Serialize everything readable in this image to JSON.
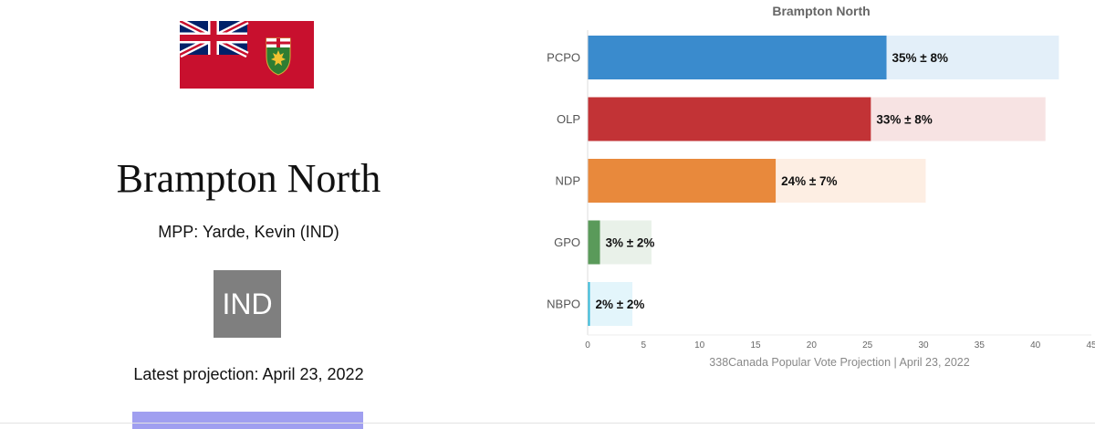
{
  "riding": {
    "name": "Brampton North",
    "mpp_line": "MPP: Yarde, Kevin (IND)",
    "party_badge": "IND",
    "party_badge_color": "#7f7f7f",
    "latest_projection": "Latest projection: April 23, 2022"
  },
  "flag": {
    "field_color": "#c8102e",
    "union_jack_blue": "#012169",
    "shield_icon": "ontario-coat-of-arms"
  },
  "chart_data": {
    "type": "bar",
    "orientation": "horizontal",
    "title": "Brampton North",
    "xlabel": "338Canada Popular Vote Projection | April 23, 2022",
    "ylabel": "",
    "xlim": [
      0,
      45
    ],
    "xticks": [
      "0",
      "5",
      "10",
      "15",
      "20",
      "25",
      "30",
      "35",
      "40",
      "45"
    ],
    "grid": false,
    "categories": [
      "PCPO",
      "OLP",
      "NDP",
      "GPO",
      "NBPO"
    ],
    "values": [
      26.7,
      25.3,
      16.8,
      1.1,
      0.2
    ],
    "range_high": [
      42.1,
      40.9,
      30.2,
      5.7,
      4.0
    ],
    "data_labels": [
      "35% ± 8%",
      "33% ± 8%",
      "24% ± 7%",
      "3% ± 2%",
      "2% ± 2%"
    ],
    "colors": [
      "#3a8bcd",
      "#c23336",
      "#e8893c",
      "#5a9a5a",
      "#31b9d9"
    ],
    "range_colors": [
      "#e3eff9",
      "#f7e3e3",
      "#fdeee3",
      "#e9f1e9",
      "#e3f5fb"
    ]
  }
}
